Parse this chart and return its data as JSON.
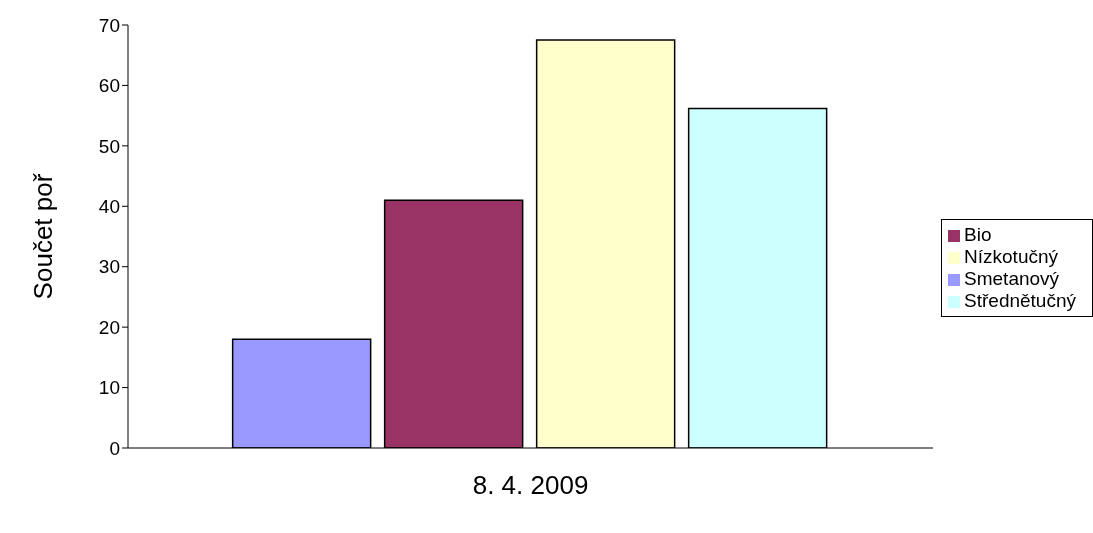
{
  "chart_data": {
    "type": "bar",
    "ylabel": "Součet poř",
    "categories": [
      "8. 4. 2009"
    ],
    "series": [
      {
        "name": "Smetanový",
        "color": "#9999ff",
        "values": [
          18
        ]
      },
      {
        "name": "Bio",
        "color": "#993366",
        "values": [
          41
        ]
      },
      {
        "name": "Nízkotučný",
        "color": "#ffffcc",
        "values": [
          67.5
        ]
      },
      {
        "name": "Střednětučný",
        "color": "#ccffff",
        "values": [
          56.2
        ]
      }
    ],
    "ylim": [
      0,
      70
    ],
    "yticks": [
      0,
      10,
      20,
      30,
      40,
      50,
      60,
      70
    ],
    "grid": false,
    "legend": "right"
  }
}
